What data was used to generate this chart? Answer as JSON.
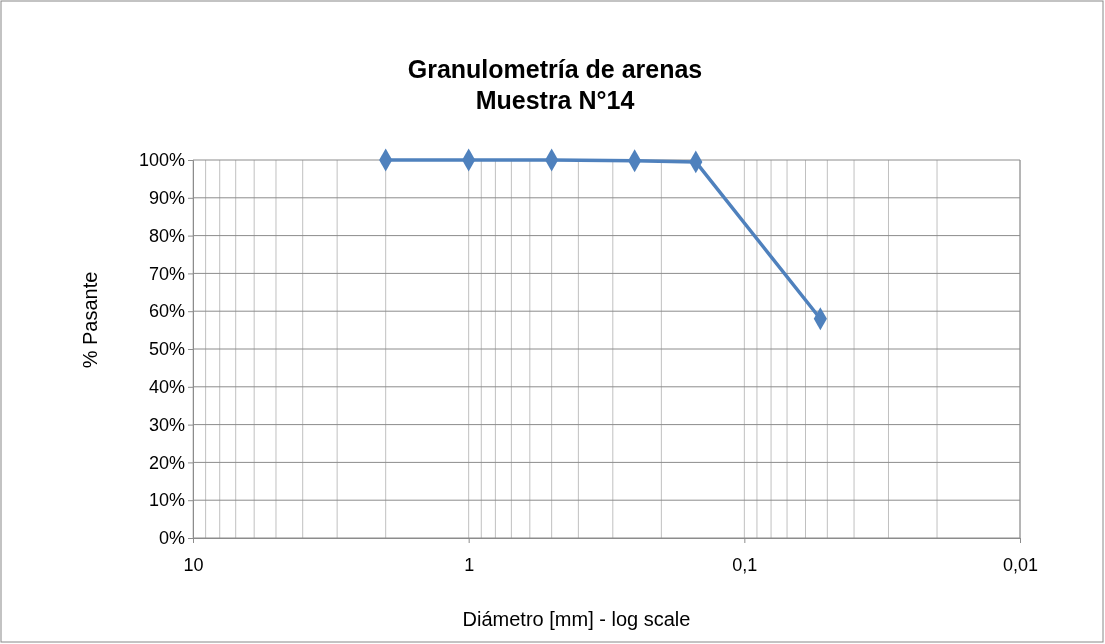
{
  "chart_data": {
    "type": "line",
    "title": "Granulometría de arenas\nMuestra N°14",
    "xlabel": "Diámetro [mm] - log scale",
    "ylabel": "% Pasante",
    "x": [
      2,
      1,
      0.5,
      0.25,
      0.15,
      0.053
    ],
    "series": [
      {
        "color": "#4f81bd",
        "values": [
          100,
          100,
          100,
          99.8,
          99.5,
          58
        ]
      }
    ],
    "log": "x",
    "xlim": [
      10,
      0.01
    ],
    "xticks": [
      {
        "value": 10,
        "label": "10"
      },
      {
        "value": 1,
        "label": "1"
      },
      {
        "value": 0.1,
        "label": "0,1"
      },
      {
        "value": 0.01,
        "label": "0,01"
      }
    ],
    "ylim": [
      0,
      100
    ],
    "yticks": [
      {
        "value": 0,
        "label": "0%"
      },
      {
        "value": 10,
        "label": "10%"
      },
      {
        "value": 20,
        "label": "20%"
      },
      {
        "value": 30,
        "label": "30%"
      },
      {
        "value": 40,
        "label": "40%"
      },
      {
        "value": 50,
        "label": "50%"
      },
      {
        "value": 60,
        "label": "60%"
      },
      {
        "value": 70,
        "label": "70%"
      },
      {
        "value": 80,
        "label": "80%"
      },
      {
        "value": 90,
        "label": "90%"
      },
      {
        "value": 100,
        "label": "100%"
      }
    ],
    "grid": true,
    "marker": "diamond",
    "line_style": "solid"
  }
}
